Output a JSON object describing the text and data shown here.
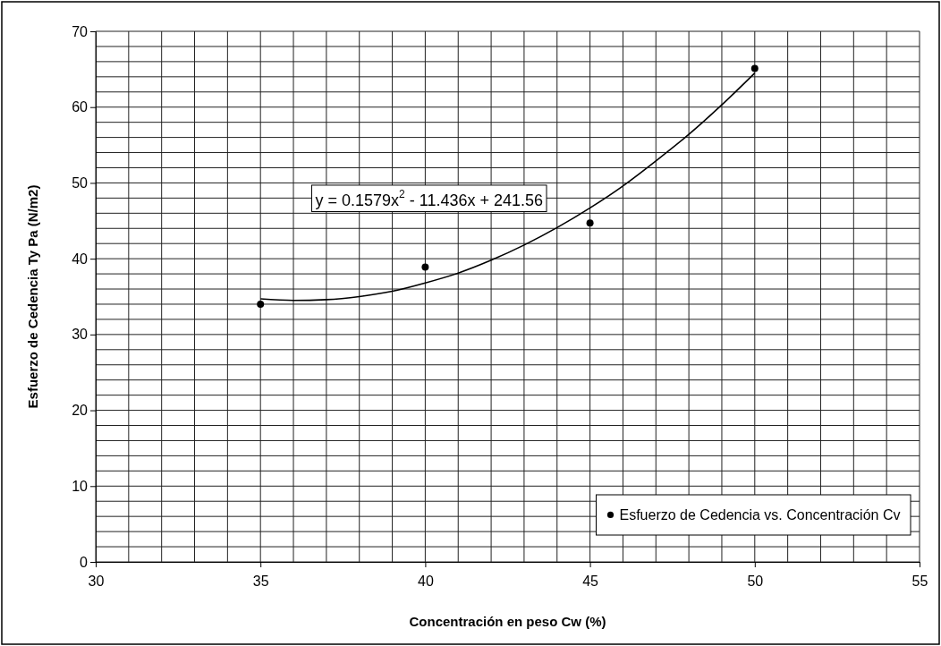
{
  "chart_data": {
    "type": "scatter",
    "xlabel": "Concentración en peso Cw (%)",
    "ylabel": "Esfuerzo de Cedencia Ty Pa (N/m2)",
    "xlim": [
      30,
      55
    ],
    "ylim": [
      0,
      70
    ],
    "xticks": [
      30,
      {
        "value": 31,
        "label": null
      },
      {
        "value": 32,
        "label": null
      },
      {
        "value": 33,
        "label": null
      },
      {
        "value": 34,
        "label": null
      },
      35,
      {
        "value": 36,
        "label": null
      },
      {
        "value": 37,
        "label": null
      },
      {
        "value": 38,
        "label": null
      },
      {
        "value": 39,
        "label": null
      },
      40,
      {
        "value": 41,
        "label": null
      },
      {
        "value": 42,
        "label": null
      },
      {
        "value": 43,
        "label": null
      },
      {
        "value": 44,
        "label": null
      },
      45,
      {
        "value": 46,
        "label": null
      },
      {
        "value": 47,
        "label": null
      },
      {
        "value": 48,
        "label": null
      },
      {
        "value": 49,
        "label": null
      },
      50,
      {
        "value": 51,
        "label": null
      },
      {
        "value": 52,
        "label": null
      },
      {
        "value": 53,
        "label": null
      },
      {
        "value": 54,
        "label": null
      },
      55
    ],
    "yticks": [
      0,
      {
        "value": 2,
        "label": null
      },
      {
        "value": 4,
        "label": null
      },
      {
        "value": 6,
        "label": null
      },
      {
        "value": 8,
        "label": null
      },
      10,
      {
        "value": 12,
        "label": null
      },
      {
        "value": 14,
        "label": null
      },
      {
        "value": 16,
        "label": null
      },
      {
        "value": 18,
        "label": null
      },
      20,
      {
        "value": 22,
        "label": null
      },
      {
        "value": 24,
        "label": null
      },
      {
        "value": 26,
        "label": null
      },
      {
        "value": 28,
        "label": null
      },
      30,
      {
        "value": 32,
        "label": null
      },
      {
        "value": 34,
        "label": null
      },
      {
        "value": 36,
        "label": null
      },
      {
        "value": 38,
        "label": null
      },
      40,
      {
        "value": 42,
        "label": null
      },
      {
        "value": 44,
        "label": null
      },
      {
        "value": 46,
        "label": null
      },
      {
        "value": 48,
        "label": null
      },
      50,
      {
        "value": 52,
        "label": null
      },
      {
        "value": 54,
        "label": null
      },
      {
        "value": 56,
        "label": null
      },
      {
        "value": 58,
        "label": null
      },
      60,
      {
        "value": 62,
        "label": null
      },
      {
        "value": 64,
        "label": null
      },
      {
        "value": 66,
        "label": null
      },
      {
        "value": 68,
        "label": null
      },
      70
    ],
    "grid": true,
    "legend": "bottom right",
    "marker": "circle",
    "annotations": [
      "y = 0.1579x$^{2}$ - 11.436x + 241.56"
    ],
    "series": [
      {
        "name": "Esfuerzo de Cedencia vs. Concentración Cv",
        "color": "#000000",
        "x": [
          35,
          40,
          45,
          50
        ],
        "values": [
          34,
          38.9,
          44.7,
          65.1
        ]
      },
      {
        "type": "line",
        "color": "#000000",
        "line_style": "solid",
        "marker": "none",
        "x": [
          35,
          36,
          37,
          38,
          39,
          40,
          41,
          42,
          43,
          44,
          45,
          46,
          47,
          48,
          49,
          50
        ],
        "values": [
          34.7,
          34.5,
          34.6,
          35.0,
          35.7,
          36.8,
          38.1,
          39.8,
          41.8,
          44.1,
          46.7,
          49.6,
          52.9,
          56.4,
          60.3,
          64.5
        ]
      }
    ]
  }
}
